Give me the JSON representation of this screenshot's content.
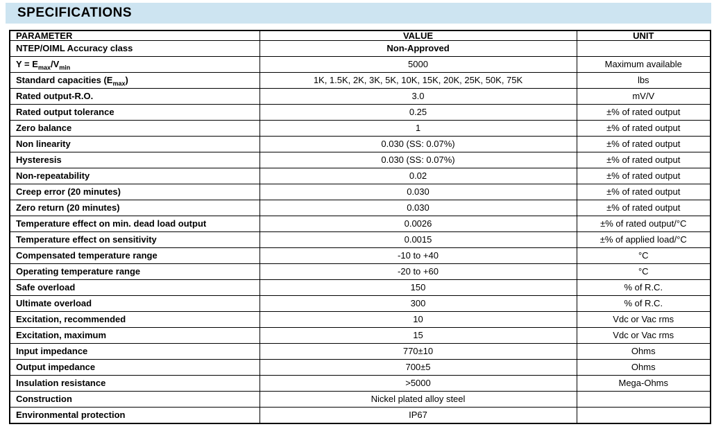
{
  "page": {
    "title": "SPECIFICATIONS",
    "title_band_color": "#cde4f1",
    "border_color": "#000000"
  },
  "table": {
    "headers": [
      "PARAMETER",
      "VALUE",
      "UNIT"
    ],
    "rows": [
      {
        "parameter": "NTEP/OIML Accuracy class",
        "value": "Non-Approved",
        "unit": "",
        "value_bold": true
      },
      {
        "parameter": "Y = E_{max}/V_{min}",
        "value": "5000",
        "unit": "Maximum available"
      },
      {
        "parameter": "Standard capacities (E_{max})",
        "value": "1K, 1.5K, 2K, 3K, 5K, 10K, 15K, 20K, 25K, 50K, 75K",
        "unit": "lbs"
      },
      {
        "parameter": "Rated output-R.O.",
        "value": "3.0",
        "unit": "mV/V"
      },
      {
        "parameter": "Rated output tolerance",
        "value": "0.25",
        "unit": "±% of rated output"
      },
      {
        "parameter": "Zero balance",
        "value": "1",
        "unit": "±% of rated output"
      },
      {
        "parameter": "Non linearity",
        "value": "0.030 (SS: 0.07%)",
        "unit": "±% of rated output"
      },
      {
        "parameter": "Hysteresis",
        "value": "0.030 (SS: 0.07%)",
        "unit": "±% of rated output"
      },
      {
        "parameter": "Non-repeatability",
        "value": "0.02",
        "unit": "±% of rated output"
      },
      {
        "parameter": "Creep error (20 minutes)",
        "value": "0.030",
        "unit": "±% of rated output"
      },
      {
        "parameter": "Zero return (20 minutes)",
        "value": "0.030",
        "unit": "±% of rated output"
      },
      {
        "parameter": "Temperature effect on min. dead load output",
        "value": "0.0026",
        "unit": "±% of rated output/°C"
      },
      {
        "parameter": "Temperature effect on sensitivity",
        "value": "0.0015",
        "unit": "±% of applied load/°C"
      },
      {
        "parameter": "Compensated temperature range",
        "value": "-10 to +40",
        "unit": "°C"
      },
      {
        "parameter": "Operating temperature range",
        "value": "-20 to +60",
        "unit": "°C"
      },
      {
        "parameter": "Safe overload",
        "value": "150",
        "unit": "% of R.C."
      },
      {
        "parameter": "Ultimate overload",
        "value": "300",
        "unit": "% of R.C."
      },
      {
        "parameter": "Excitation, recommended",
        "value": "10",
        "unit": "Vdc or Vac rms"
      },
      {
        "parameter": "Excitation, maximum",
        "value": "15",
        "unit": "Vdc or Vac rms"
      },
      {
        "parameter": "Input impedance",
        "value": "770±10",
        "unit": "Ohms"
      },
      {
        "parameter": "Output impedance",
        "value": "700±5",
        "unit": "Ohms"
      },
      {
        "parameter": "Insulation resistance",
        "value": ">5000",
        "unit": "Mega-Ohms"
      },
      {
        "parameter": "Construction",
        "value": "Nickel plated alloy steel",
        "unit": ""
      },
      {
        "parameter": "Environmental protection",
        "value": "IP67",
        "unit": ""
      }
    ]
  }
}
